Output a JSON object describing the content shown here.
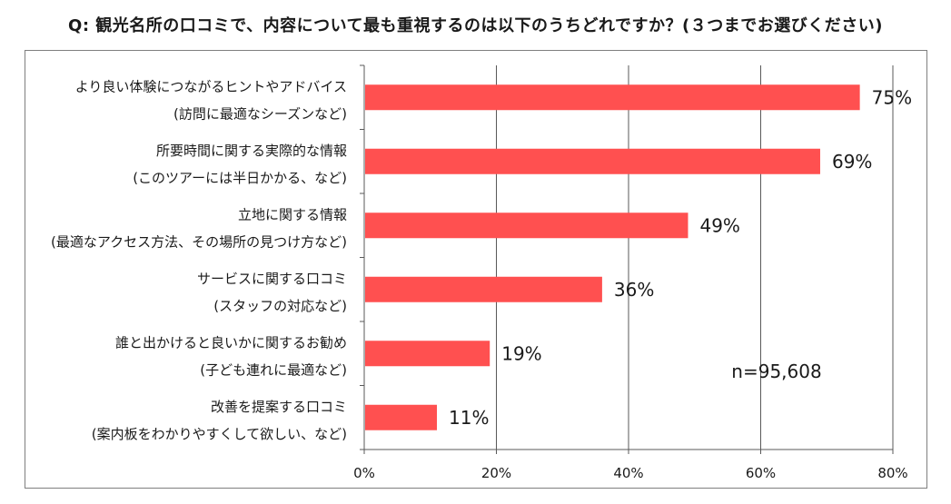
{
  "title": "Q:  観光名所の口コミで、内容について最も重視するのは以下のうちどれですか？(３つまでお選びください)",
  "chart_data": {
    "type": "bar",
    "orientation": "horizontal",
    "title": "Q:  観光名所の口コミで、内容について最も重視するのは以下のうちどれですか？(３つまでお選びください)",
    "categories": [
      [
        "より良い体験につながるヒントやアドバイス",
        "(訪問に最適なシーズンなど)"
      ],
      [
        "所要時間に関する実際的な情報",
        "(このツアーには半日かかる、など)"
      ],
      [
        "立地に関する情報",
        "(最適なアクセス方法、その場所の見つけ方など)"
      ],
      [
        "サービスに関する口コミ",
        "(スタッフの対応など)"
      ],
      [
        "誰と出かけると良いかに関するお勧め",
        "(子ども連れに最適など)"
      ],
      [
        "改善を提案する口コミ",
        "(案内板をわかりやすくして欲しい、など)"
      ]
    ],
    "values": [
      75,
      69,
      49,
      36,
      19,
      11
    ],
    "value_labels": [
      "75%",
      "69%",
      "49%",
      "36%",
      "19%",
      "11%"
    ],
    "xlim": [
      0,
      80
    ],
    "ticks": [
      0,
      20,
      40,
      60,
      80
    ],
    "tick_labels": [
      "0%",
      "20%",
      "40%",
      "60%",
      "80%"
    ],
    "grid": true,
    "annotation": "n=95,608",
    "bar_color": "#ff5050",
    "grid_color": "#595959"
  }
}
